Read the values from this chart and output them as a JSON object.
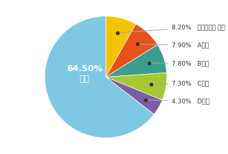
{
  "labels": [
    "서울대학교 병원",
    "A병원",
    "B병원",
    "C병원",
    "D병원",
    "기타"
  ],
  "values": [
    8.2,
    7.9,
    7.8,
    7.3,
    4.3,
    64.5
  ],
  "colors": [
    "#F5C400",
    "#E8521A",
    "#3A9E8E",
    "#A8C832",
    "#7B5EA7",
    "#7EC8E3"
  ],
  "pct_labels": [
    "8.20%",
    "7.90%",
    "7.80%",
    "7.30%",
    "4.30%",
    "64.50%\n기타"
  ],
  "startangle": 90,
  "background_color": "#ffffff"
}
